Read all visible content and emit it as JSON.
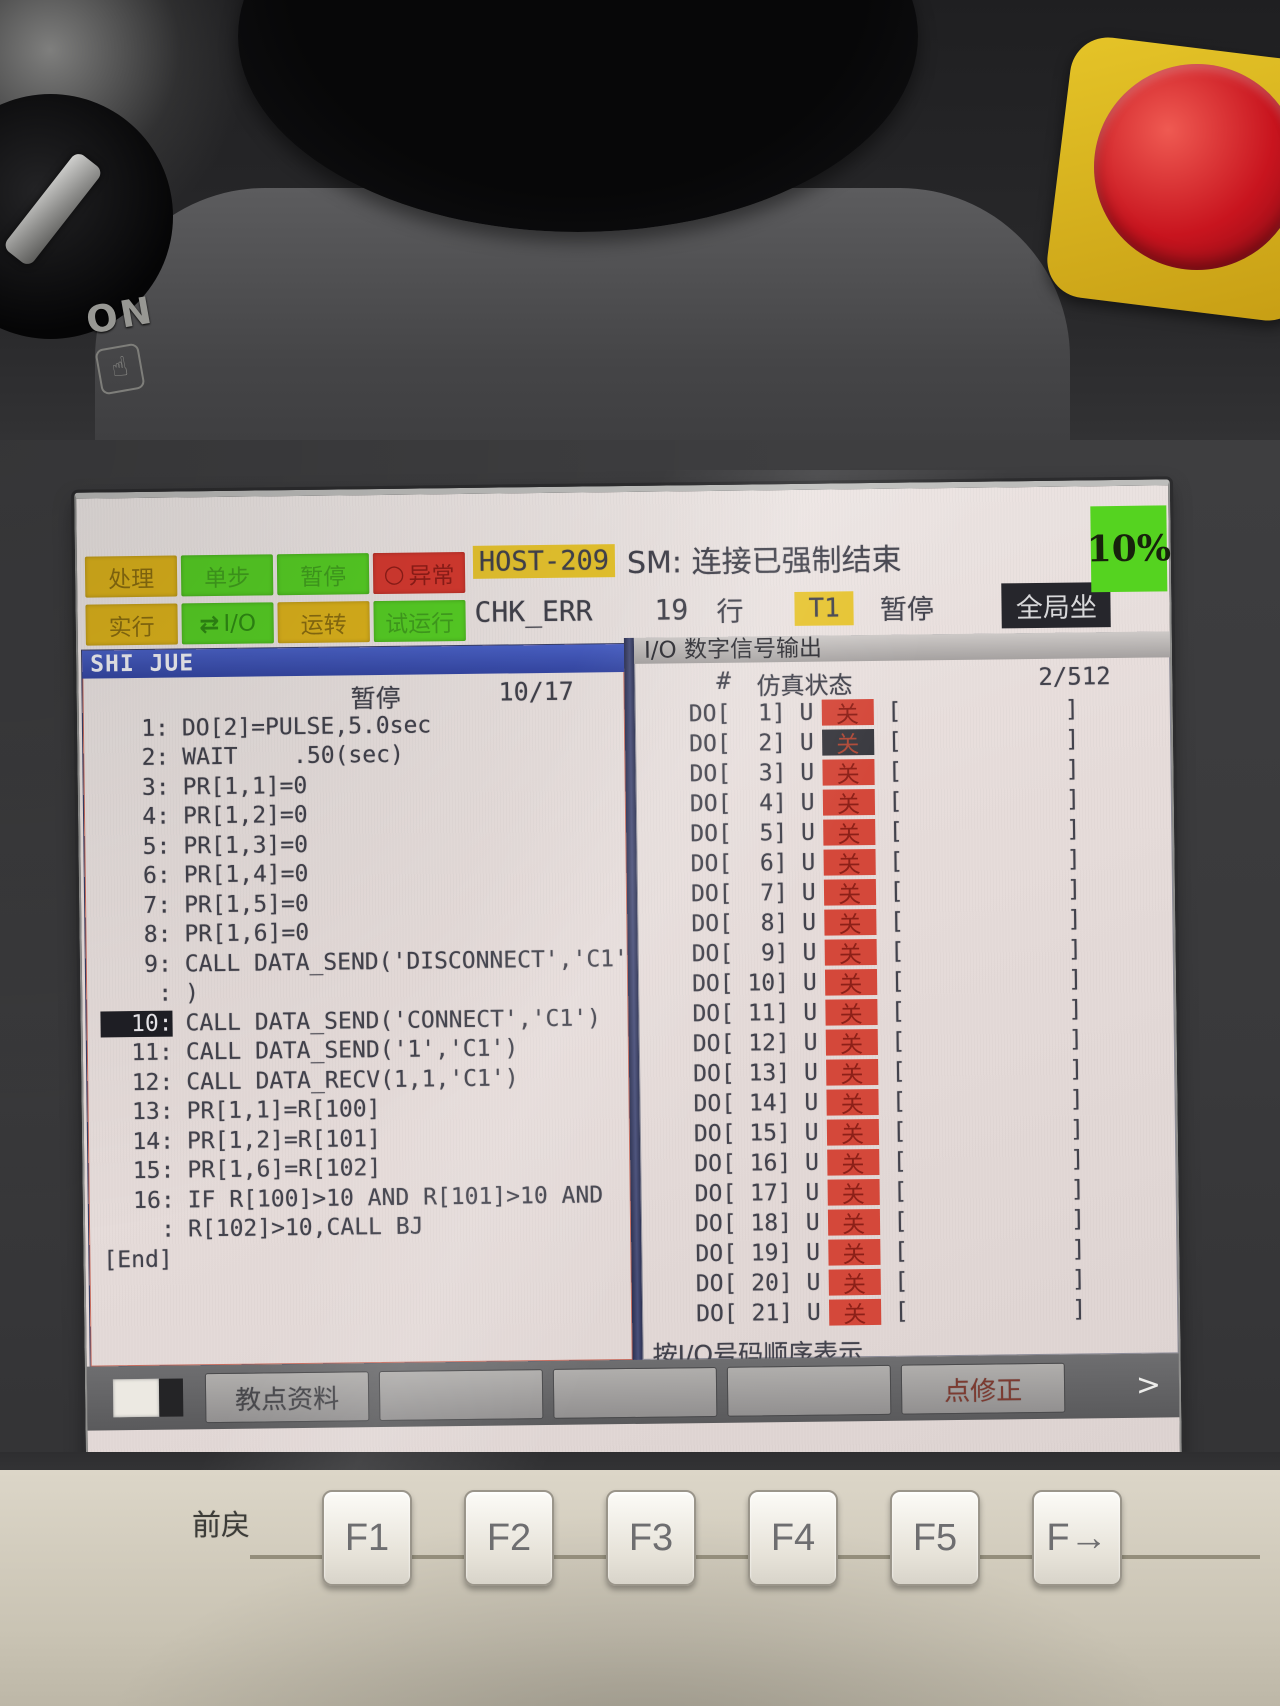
{
  "pendant": {
    "on_label": "ON"
  },
  "colors": {
    "led_yellow": "#ddb31c",
    "led_green": "#57cf25",
    "led_red": "#d73a30",
    "highlight_yellow": "#e6c32e",
    "titlebar_blue": "#3d53b4",
    "io_off_red": "#d4483a",
    "cursor_black": "#2a2a2e",
    "speed_green": "#55d320"
  },
  "status_leds": {
    "row1": [
      {
        "label": "处理",
        "type": "yellow"
      },
      {
        "label": "单步",
        "type": "green",
        "faint": true
      },
      {
        "label": "暂停",
        "type": "green",
        "faint": true
      },
      {
        "label": "异常",
        "type": "red",
        "icon": "○",
        "icon_name": "circle-icon"
      }
    ],
    "row2": [
      {
        "label": "实行",
        "type": "yellow"
      },
      {
        "label": "I/O",
        "type": "green",
        "icon": "⇄",
        "icon_name": "io-arrows-icon"
      },
      {
        "label": "运转",
        "type": "yellow"
      },
      {
        "label": "试运行",
        "type": "green",
        "faint": true
      }
    ]
  },
  "header": {
    "host": "HOST-209",
    "message": "SM: 连接已强制结束",
    "program": "CHK_ERR",
    "line_no": "19",
    "line_word": "行",
    "mode": "T1",
    "run_state": "暂停",
    "coord": "全局坐",
    "speed": "10%"
  },
  "program_panel": {
    "title": "SHI JUE",
    "state": "暂停",
    "position": "10/17",
    "lines": [
      {
        "num": "1:",
        "text": "DO[2]=PULSE,5.0sec"
      },
      {
        "num": "2:",
        "text": "WAIT    .50(sec)"
      },
      {
        "num": "3:",
        "text": "PR[1,1]=0"
      },
      {
        "num": "4:",
        "text": "PR[1,2]=0"
      },
      {
        "num": "5:",
        "text": "PR[1,3]=0"
      },
      {
        "num": "6:",
        "text": "PR[1,4]=0"
      },
      {
        "num": "7:",
        "text": "PR[1,5]=0"
      },
      {
        "num": "8:",
        "text": "PR[1,6]=0"
      },
      {
        "num": "9:",
        "text": "CALL DATA_SEND('DISCONNECT','C1'"
      },
      {
        "num": ":",
        "text": ")"
      },
      {
        "num": "10:",
        "text": "CALL DATA_SEND('CONNECT','C1')",
        "selected": true
      },
      {
        "num": "11:",
        "text": "CALL DATA_SEND('1','C1')"
      },
      {
        "num": "12:",
        "text": "CALL DATA_RECV(1,1,'C1')"
      },
      {
        "num": "13:",
        "text": "PR[1,1]=R[100]"
      },
      {
        "num": "14:",
        "text": "PR[1,2]=R[101]"
      },
      {
        "num": "15:",
        "text": "PR[1,6]=R[102]"
      },
      {
        "num": "16:",
        "text": "IF R[100]>10 AND R[101]>10 AND"
      },
      {
        "num": ":",
        "text": "R[102]>10,CALL BJ"
      },
      {
        "num": "[End]",
        "text": "",
        "end": true
      }
    ]
  },
  "io_panel": {
    "title": "I/O 数字信号输出",
    "hash": "#",
    "sim_header": "仿真状态",
    "position": "2/512",
    "bracket_open": "[",
    "bracket_close": "]",
    "footer": "按I/O号码顺序表示",
    "rows": [
      {
        "label": "DO[  1] U",
        "state": "关"
      },
      {
        "label": "DO[  2] U",
        "state": "关",
        "cursor": true
      },
      {
        "label": "DO[  3] U",
        "state": "关"
      },
      {
        "label": "DO[  4] U",
        "state": "关"
      },
      {
        "label": "DO[  5] U",
        "state": "关"
      },
      {
        "label": "DO[  6] U",
        "state": "关"
      },
      {
        "label": "DO[  7] U",
        "state": "关"
      },
      {
        "label": "DO[  8] U",
        "state": "关"
      },
      {
        "label": "DO[  9] U",
        "state": "关"
      },
      {
        "label": "DO[ 10] U",
        "state": "关"
      },
      {
        "label": "DO[ 11] U",
        "state": "关"
      },
      {
        "label": "DO[ 12] U",
        "state": "关"
      },
      {
        "label": "DO[ 13] U",
        "state": "关"
      },
      {
        "label": "DO[ 14] U",
        "state": "关"
      },
      {
        "label": "DO[ 15] U",
        "state": "关"
      },
      {
        "label": "DO[ 16] U",
        "state": "关"
      },
      {
        "label": "DO[ 17] U",
        "state": "关"
      },
      {
        "label": "DO[ 18] U",
        "state": "关"
      },
      {
        "label": "DO[ 19] U",
        "state": "关"
      },
      {
        "label": "DO[ 20] U",
        "state": "关"
      },
      {
        "label": "DO[ 21] U",
        "state": "关"
      }
    ]
  },
  "softkeys": {
    "items": [
      {
        "label": "教点资料"
      },
      {
        "label": ""
      },
      {
        "label": ""
      },
      {
        "label": ""
      },
      {
        "label": "点修正",
        "accent": true
      }
    ],
    "more": ">"
  },
  "keyboard": {
    "prev_label": "前戻",
    "fkeys": [
      "F1",
      "F2",
      "F3",
      "F4",
      "F5",
      "F→"
    ]
  }
}
